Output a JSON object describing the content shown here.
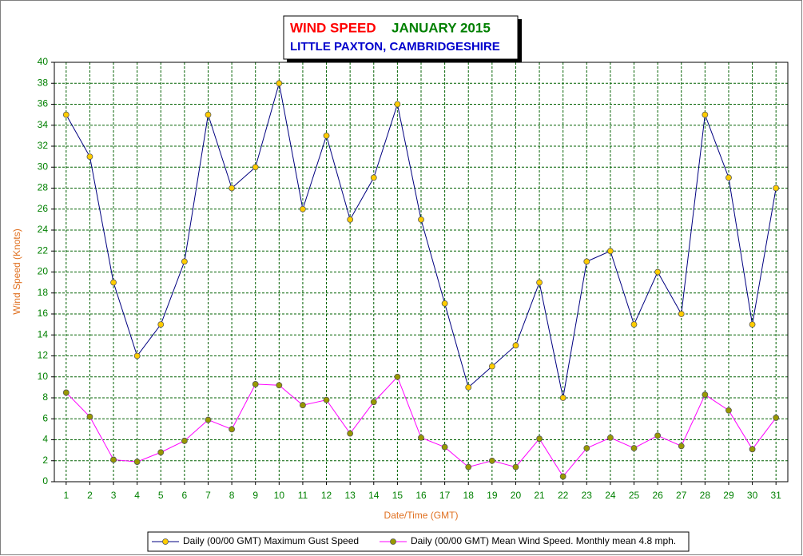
{
  "chart_data": {
    "type": "line",
    "title": "WIND SPEED",
    "period": "JANUARY 2015",
    "subtitle": "LITTLE PAXTON, CAMBRIDGESHIRE",
    "x_label": "Date/Time (GMT)",
    "y_label": "Wind Speed (Knots)",
    "categories": [
      "1",
      "2",
      "3",
      "4",
      "5",
      "6",
      "7",
      "8",
      "9",
      "10",
      "11",
      "12",
      "13",
      "14",
      "15",
      "16",
      "17",
      "18",
      "19",
      "20",
      "21",
      "22",
      "23",
      "24",
      "25",
      "26",
      "27",
      "28",
      "29",
      "30",
      "31"
    ],
    "series": [
      {
        "name": "Daily (00/00 GMT) Maximum Gust Speed",
        "color": "#000080",
        "marker_color": "#ffcc00",
        "values": [
          35,
          31,
          19,
          12,
          15,
          21,
          35,
          28,
          30,
          38,
          26,
          33,
          25,
          29,
          36,
          25,
          17,
          9,
          11,
          13,
          19,
          8,
          21,
          22,
          15,
          20,
          16,
          35,
          29,
          15,
          28
        ]
      },
      {
        "name": "Daily (00/00 GMT) Mean Wind Speed. Monthly mean 4.8 mph.",
        "color": "#ff00ff",
        "marker_color": "#999900",
        "values": [
          8.5,
          6.2,
          2.1,
          1.9,
          2.8,
          3.9,
          5.9,
          5.0,
          9.3,
          9.2,
          7.3,
          7.8,
          4.6,
          7.6,
          10.0,
          4.2,
          3.3,
          1.4,
          2.0,
          1.4,
          4.1,
          0.5,
          3.2,
          4.2,
          3.2,
          4.4,
          3.4,
          8.3,
          6.8,
          3.1,
          6.1
        ]
      }
    ],
    "ylim": [
      0,
      40
    ],
    "yticks": [
      0,
      2,
      4,
      6,
      8,
      10,
      12,
      14,
      16,
      18,
      20,
      22,
      24,
      26,
      28,
      30,
      32,
      34,
      36,
      38,
      40
    ],
    "grid": true,
    "legend": "bottom"
  }
}
